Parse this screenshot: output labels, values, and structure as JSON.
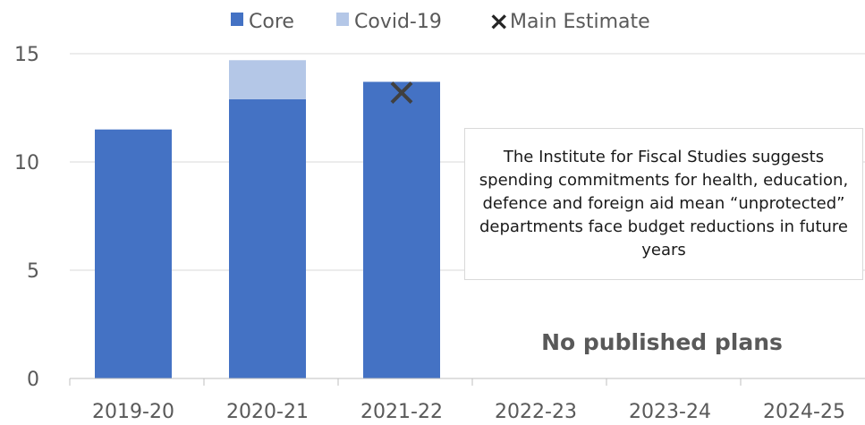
{
  "chart_data": {
    "type": "bar",
    "stacked": true,
    "categories": [
      "2019-20",
      "2020-21",
      "2021-22",
      "2022-23",
      "2023-24",
      "2024-25"
    ],
    "series": [
      {
        "name": "Core",
        "color": "#4472c4",
        "values": [
          11.5,
          12.9,
          13.7,
          null,
          null,
          null
        ]
      },
      {
        "name": "Covid-19",
        "color": "#b4c7e7",
        "values": [
          0,
          1.8,
          0,
          null,
          null,
          null
        ]
      }
    ],
    "markers": {
      "name": "Main Estimate",
      "symbol": "×",
      "color": "#404040",
      "values": [
        null,
        null,
        13.2,
        null,
        null,
        null
      ]
    },
    "y_ticks": [
      "0",
      "5",
      "10",
      "15"
    ],
    "ylim": [
      0,
      15
    ],
    "grid": true,
    "legend": {
      "placement": "top"
    },
    "annotations": {
      "note": "The Institute for Fiscal Studies suggests spending commitments for health, education, defence and foreign aid mean “unprotected” departments face budget reductions in future years",
      "no_plans": "No published plans"
    }
  }
}
